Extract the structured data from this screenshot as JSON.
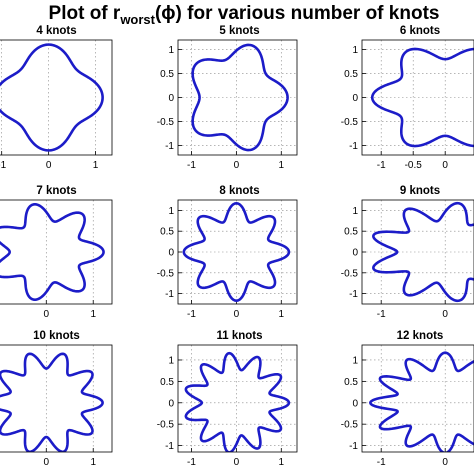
{
  "figure": {
    "title_prefix": "Plot of r",
    "title_subscript": "worst",
    "title_suffix": "(ϕ) for various number of knots"
  },
  "style": {
    "line_color": "#1c1cc8",
    "grid": true
  },
  "chart_data": [
    {
      "type": "line",
      "title": "4 knots",
      "knots": 4,
      "r_mean": 1.0,
      "r_amplitude": 0.15,
      "xlim": [
        -1.1,
        1.35
      ],
      "ylim": [
        -1.25,
        1.25
      ],
      "xticks": [
        -1,
        0,
        1
      ],
      "xtick_labels": [
        "-1",
        "0",
        "1"
      ],
      "yticks": [],
      "ytick_labels": []
    },
    {
      "type": "line",
      "title": "5 knots",
      "knots": 5,
      "r_mean": 0.98,
      "r_amplitude": 0.16,
      "xlim": [
        -1.3,
        1.35
      ],
      "ylim": [
        -1.2,
        1.2
      ],
      "xticks": [
        -1,
        0,
        1
      ],
      "xtick_labels": [
        "-1",
        "0",
        "1"
      ],
      "yticks": [
        1,
        0.5,
        0,
        -0.5,
        -1
      ],
      "ytick_labels": [
        "1",
        "0.5",
        "0",
        "-0.5",
        "-1"
      ]
    },
    {
      "type": "line",
      "title": "6 knots",
      "knots": 6,
      "r_mean": 0.97,
      "r_amplitude": 0.17,
      "xlim": [
        -1.3,
        0.45
      ],
      "ylim": [
        -1.2,
        1.2
      ],
      "xticks": [
        -1,
        -0.5,
        0
      ],
      "xtick_labels": [
        "-1",
        "-0.5",
        "0"
      ],
      "yticks": [
        1,
        0.5,
        0,
        -0.5,
        -1
      ],
      "ytick_labels": [
        "1",
        "0.5",
        "0",
        "-0.5",
        "-1"
      ]
    },
    {
      "type": "line",
      "title": "7 knots",
      "knots": 7,
      "r_mean": 1.0,
      "r_amplitude": 0.22,
      "xlim": [
        -1.05,
        1.4
      ],
      "ylim": [
        -1.3,
        1.3
      ],
      "xticks": [
        -1,
        0,
        1
      ],
      "xtick_labels": [
        "",
        "0",
        "1"
      ],
      "yticks": [],
      "ytick_labels": []
    },
    {
      "type": "line",
      "title": "8 knots",
      "knots": 8,
      "r_mean": 0.97,
      "r_amplitude": 0.2,
      "xlim": [
        -1.3,
        1.35
      ],
      "ylim": [
        -1.25,
        1.25
      ],
      "xticks": [
        -1,
        0,
        1
      ],
      "xtick_labels": [
        "-1",
        "0",
        "1"
      ],
      "yticks": [
        1,
        0.5,
        0,
        -0.5,
        -1
      ],
      "ytick_labels": [
        "1",
        "0.5",
        "0",
        "-0.5",
        "-1"
      ]
    },
    {
      "type": "line",
      "title": "9 knots",
      "knots": 9,
      "r_mean": 0.97,
      "r_amplitude": 0.22,
      "xlim": [
        -1.3,
        0.45
      ],
      "ylim": [
        -1.25,
        1.25
      ],
      "xticks": [
        -1,
        0
      ],
      "xtick_labels": [
        "-1",
        "0"
      ],
      "yticks": [
        1,
        0.5,
        0,
        -0.5,
        -1
      ],
      "ytick_labels": [
        "1",
        "0.5",
        "0",
        "-0.5",
        "-1"
      ]
    },
    {
      "type": "line",
      "title": "10 knots",
      "knots": 10,
      "r_mean": 1.0,
      "r_amplitude": 0.2,
      "xlim": [
        -1.05,
        1.4
      ],
      "ylim": [
        -1.15,
        1.35
      ],
      "xticks": [
        -1,
        0,
        1
      ],
      "xtick_labels": [
        "",
        "0",
        "1"
      ],
      "yticks": [],
      "ytick_labels": []
    },
    {
      "type": "line",
      "title": "11 knots",
      "knots": 11,
      "r_mean": 0.97,
      "r_amplitude": 0.2,
      "xlim": [
        -1.3,
        1.35
      ],
      "ylim": [
        -1.15,
        1.35
      ],
      "xticks": [
        -1,
        0,
        1
      ],
      "xtick_labels": [
        "-1",
        "0",
        "1"
      ],
      "yticks": [
        1,
        0.5,
        0,
        -0.5,
        -1
      ],
      "ytick_labels": [
        "1",
        "0.5",
        "0",
        "-0.5",
        "-1"
      ]
    },
    {
      "type": "line",
      "title": "12 knots",
      "knots": 12,
      "r_mean": 0.97,
      "r_amplitude": 0.2,
      "xlim": [
        -1.3,
        0.45
      ],
      "ylim": [
        -1.15,
        1.35
      ],
      "xticks": [
        -1,
        0
      ],
      "xtick_labels": [
        "-1",
        "0"
      ],
      "yticks": [
        1,
        0.5,
        0,
        -0.5,
        -1
      ],
      "ytick_labels": [
        "1",
        "0.5",
        "0",
        "-0.5",
        "-1"
      ]
    }
  ]
}
